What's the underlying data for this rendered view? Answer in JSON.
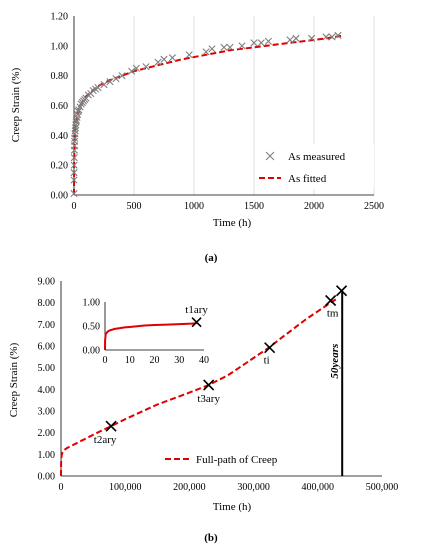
{
  "chart_data": [
    {
      "type": "scatter",
      "panel_label": "(a)",
      "xlabel": "Time (h)",
      "ylabel": "Creep Strain (%)",
      "xlim": [
        0,
        2500
      ],
      "ylim": [
        0,
        1.2
      ],
      "x_ticks": [
        "0",
        "500",
        "1000",
        "1500",
        "2000",
        "2500"
      ],
      "y_ticks": [
        "0.00",
        "0.20",
        "0.40",
        "0.60",
        "0.80",
        "1.00",
        "1.20"
      ],
      "grid": "vertical",
      "legend_position": "bottom-right",
      "series": [
        {
          "name": "As measured",
          "marker": "x",
          "color": "#7f7f7f",
          "x": [
            0,
            0.2,
            0.5,
            1,
            2,
            3,
            4,
            5,
            6,
            8,
            10,
            12,
            15,
            18,
            20,
            25,
            30,
            35,
            40,
            50,
            60,
            70,
            80,
            90,
            100,
            120,
            140,
            160,
            180,
            200,
            250,
            300,
            350,
            400,
            480,
            520,
            600,
            700,
            750,
            820,
            960,
            1100,
            1150,
            1250,
            1300,
            1400,
            1500,
            1560,
            1620,
            1800,
            1850,
            1980,
            2100,
            2150,
            2200
          ],
          "y": [
            0.01,
            0.1,
            0.15,
            0.2,
            0.25,
            0.3,
            0.33,
            0.36,
            0.38,
            0.41,
            0.43,
            0.45,
            0.47,
            0.49,
            0.5,
            0.52,
            0.54,
            0.56,
            0.57,
            0.59,
            0.61,
            0.62,
            0.63,
            0.64,
            0.65,
            0.67,
            0.68,
            0.7,
            0.71,
            0.72,
            0.74,
            0.76,
            0.78,
            0.8,
            0.83,
            0.85,
            0.86,
            0.89,
            0.91,
            0.92,
            0.94,
            0.96,
            0.98,
            0.99,
            0.99,
            1.0,
            1.02,
            1.02,
            1.03,
            1.04,
            1.05,
            1.05,
            1.06,
            1.06,
            1.07
          ]
        },
        {
          "name": "As fitted",
          "style": "dashed",
          "color": "#e00000",
          "x": [
            0,
            1,
            5,
            10,
            20,
            50,
            100,
            200,
            300,
            400,
            500,
            700,
            900,
            1100,
            1300,
            1500,
            1700,
            1900,
            2100,
            2250
          ],
          "y": [
            0.0,
            0.22,
            0.36,
            0.43,
            0.5,
            0.6,
            0.66,
            0.73,
            0.77,
            0.8,
            0.83,
            0.87,
            0.91,
            0.94,
            0.97,
            0.99,
            1.01,
            1.03,
            1.05,
            1.07
          ]
        }
      ]
    },
    {
      "type": "line",
      "panel_label": "(b)",
      "xlabel": "Time (h)",
      "ylabel": "Creep Strain (%)",
      "xlim": [
        0,
        500000
      ],
      "ylim": [
        0,
        9
      ],
      "x_ticks": [
        "0",
        "100,000",
        "200,000",
        "300,000",
        "400,000",
        "500,000"
      ],
      "y_ticks": [
        "0.00",
        "1.00",
        "2.00",
        "3.00",
        "4.00",
        "5.00",
        "6.00",
        "7.00",
        "8.00",
        "9.00"
      ],
      "legend_position": "bottom-center",
      "series": [
        {
          "name": "Full-path of Creep",
          "style": "dashed",
          "color": "#e00000",
          "x": [
            0,
            200,
            1000,
            2500,
            5000,
            10000,
            20000,
            40000,
            60000,
            78000,
            100000,
            150000,
            200000,
            230000,
            260000,
            290000,
            310000,
            325000,
            340000,
            360000,
            380000,
            400000,
            410000,
            420000,
            428000
          ],
          "y": [
            0.0,
            0.6,
            0.95,
            1.1,
            1.2,
            1.3,
            1.45,
            1.75,
            2.05,
            2.3,
            2.62,
            3.3,
            3.85,
            4.2,
            4.65,
            5.25,
            5.65,
            5.95,
            6.3,
            6.75,
            7.2,
            7.6,
            7.8,
            8.0,
            8.15
          ]
        }
      ],
      "markers": [
        {
          "label": "t2ary",
          "x": 78000,
          "y": 2.3
        },
        {
          "label": "t3ary",
          "x": 230000,
          "y": 4.2
        },
        {
          "label": "ti",
          "x": 325000,
          "y": 5.92
        },
        {
          "label": "tm",
          "x": 420000,
          "y": 8.1
        },
        {
          "label": "",
          "x": 437000,
          "y": 8.55
        }
      ],
      "vertical_line": {
        "x": 438000,
        "label": "50years"
      },
      "inset": {
        "xlim": [
          0,
          40
        ],
        "ylim": [
          0,
          1
        ],
        "x_ticks": [
          "0",
          "10",
          "20",
          "30",
          "40"
        ],
        "y_ticks": [
          "0.00",
          "0.50",
          "1.00"
        ],
        "marker": {
          "label": "t1ary",
          "x": 37,
          "y": 0.58
        },
        "x": [
          0,
          0.05,
          0.3,
          1,
          2,
          4,
          8,
          12,
          16,
          20,
          25,
          30,
          35,
          37
        ],
        "y": [
          0.0,
          0.2,
          0.33,
          0.38,
          0.41,
          0.44,
          0.47,
          0.49,
          0.51,
          0.52,
          0.53,
          0.54,
          0.55,
          0.56
        ]
      }
    }
  ]
}
